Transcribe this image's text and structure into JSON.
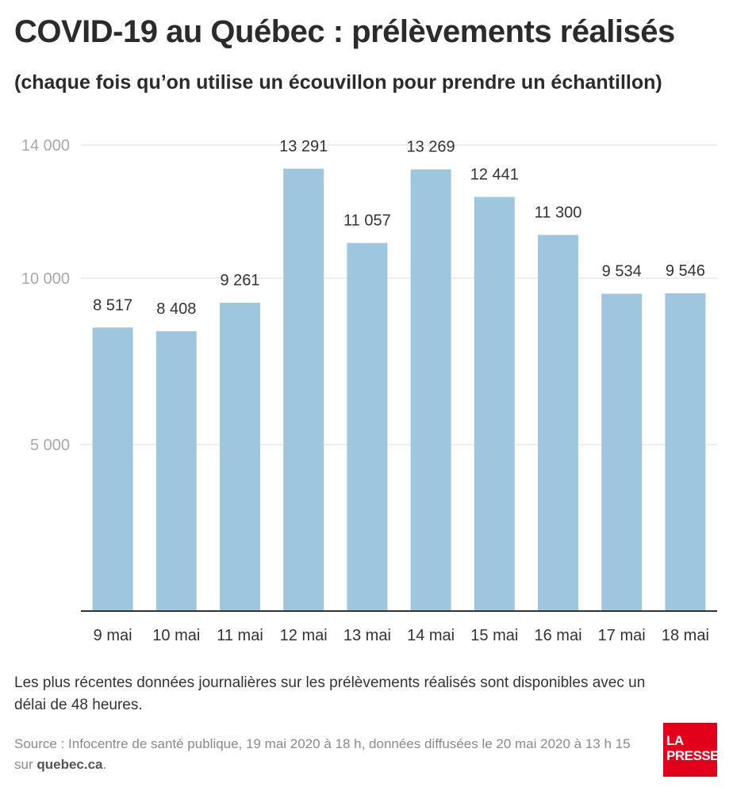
{
  "header": {
    "title": "COVID-19 au Québec : prélèvements réalisés",
    "subtitle": "(chaque fois qu’on utilise un écouvillon pour prendre un échantillon)"
  },
  "chart_data": {
    "type": "bar",
    "title": "COVID-19 au Québec : prélèvements réalisés",
    "subtitle": "(chaque fois qu’on utilise un écouvillon pour prendre un échantillon)",
    "categories": [
      "9 mai",
      "10 mai",
      "11 mai",
      "12 mai",
      "13 mai",
      "14 mai",
      "15 mai",
      "16 mai",
      "17 mai",
      "18 mai"
    ],
    "values": [
      8517,
      8408,
      9261,
      13291,
      11057,
      13269,
      12441,
      11300,
      9534,
      9546
    ],
    "value_labels": [
      "8 517",
      "8 408",
      "9 261",
      "13 291",
      "11 057",
      "13 269",
      "12 441",
      "11 300",
      "9 534",
      "9 546"
    ],
    "yticks": [
      5000,
      10000,
      14000
    ],
    "ytick_labels": [
      "5 000",
      "10 000",
      "14 000"
    ],
    "ylim": [
      0,
      14000
    ],
    "xlabel": "",
    "ylabel": "",
    "grid": true,
    "bar_color": "#9fc6df"
  },
  "footer": {
    "note": "Les plus récentes données journalières sur les prélèvements réalisés sont disponibles avec un délai de 48 heures.",
    "source_prefix": "Source : Infocentre de santé publique, 19 mai 2020 à 18 h, données diffusées le 20 mai 2020 à 13 h 15 sur ",
    "source_link": "quebec.ca",
    "source_suffix": "."
  },
  "logo": {
    "line1": "LA",
    "line2": "PRESSE",
    "color": "#e3001b"
  }
}
